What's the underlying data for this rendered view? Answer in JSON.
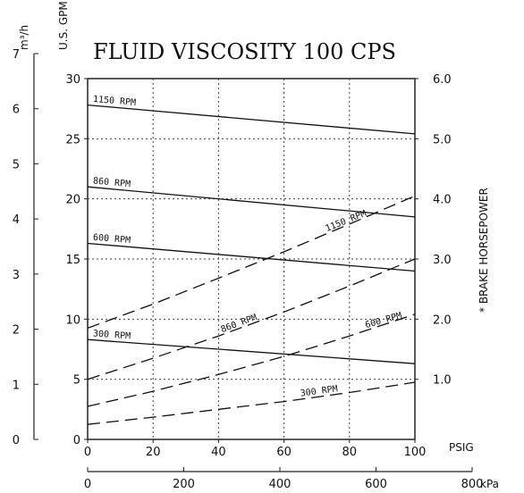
{
  "chart_data": {
    "type": "line",
    "title": "FLUID VISCOSITY 100 CPS",
    "x_axis": {
      "label": "PSIG",
      "range": [
        0,
        100
      ],
      "ticks": [
        "0",
        "20",
        "40",
        "60",
        "80",
        "100"
      ],
      "secondary": {
        "label": "kPa",
        "range": [
          0,
          800
        ],
        "ticks": [
          "0",
          "200",
          "400",
          "600",
          "800"
        ]
      }
    },
    "y_axis_left": {
      "label": "U.S. GPM",
      "range": [
        0,
        30
      ],
      "ticks": [
        "0",
        "5",
        "10",
        "15",
        "20",
        "25",
        "30"
      ],
      "secondary": {
        "label": "m³/h",
        "range": [
          0,
          7
        ],
        "ticks": [
          "0",
          "1",
          "2",
          "3",
          "4",
          "5",
          "6",
          "7"
        ]
      }
    },
    "y_axis_right": {
      "label": "* BRAKE HORSEPOWER",
      "range": [
        0,
        6
      ],
      "ticks": [
        "1.0",
        "2.0",
        "3.0",
        "4.0",
        "5.0",
        "6.0"
      ]
    },
    "grid": true,
    "series": [
      {
        "name": "1150 RPM",
        "kind": "flow",
        "style": "solid",
        "x": [
          0,
          100
        ],
        "y": [
          27.8,
          25.4
        ]
      },
      {
        "name": "860 RPM",
        "kind": "flow",
        "style": "solid",
        "x": [
          0,
          100
        ],
        "y": [
          21.0,
          18.5
        ]
      },
      {
        "name": "600 RPM",
        "kind": "flow",
        "style": "solid",
        "x": [
          0,
          100
        ],
        "y": [
          16.3,
          14.0
        ]
      },
      {
        "name": "300 RPM",
        "kind": "flow",
        "style": "solid",
        "x": [
          0,
          100
        ],
        "y": [
          8.3,
          6.3
        ]
      },
      {
        "name": "1150 RPM",
        "kind": "power",
        "style": "dashed",
        "x": [
          0,
          20,
          40,
          60,
          80,
          100
        ],
        "y": [
          1.85,
          2.25,
          2.68,
          3.12,
          3.58,
          4.05
        ]
      },
      {
        "name": "860 RPM",
        "kind": "power",
        "style": "dashed",
        "x": [
          0,
          20,
          40,
          60,
          80,
          100
        ],
        "y": [
          1.0,
          1.35,
          1.72,
          2.12,
          2.55,
          3.0
        ]
      },
      {
        "name": "600 RPM",
        "kind": "power",
        "style": "dashed",
        "x": [
          0,
          20,
          40,
          60,
          80,
          100
        ],
        "y": [
          0.55,
          0.8,
          1.08,
          1.38,
          1.72,
          2.08
        ]
      },
      {
        "name": "300 RPM",
        "kind": "power",
        "style": "dashed",
        "x": [
          0,
          20,
          40,
          60,
          80,
          100
        ],
        "y": [
          0.25,
          0.37,
          0.5,
          0.63,
          0.78,
          0.95
        ]
      }
    ]
  }
}
